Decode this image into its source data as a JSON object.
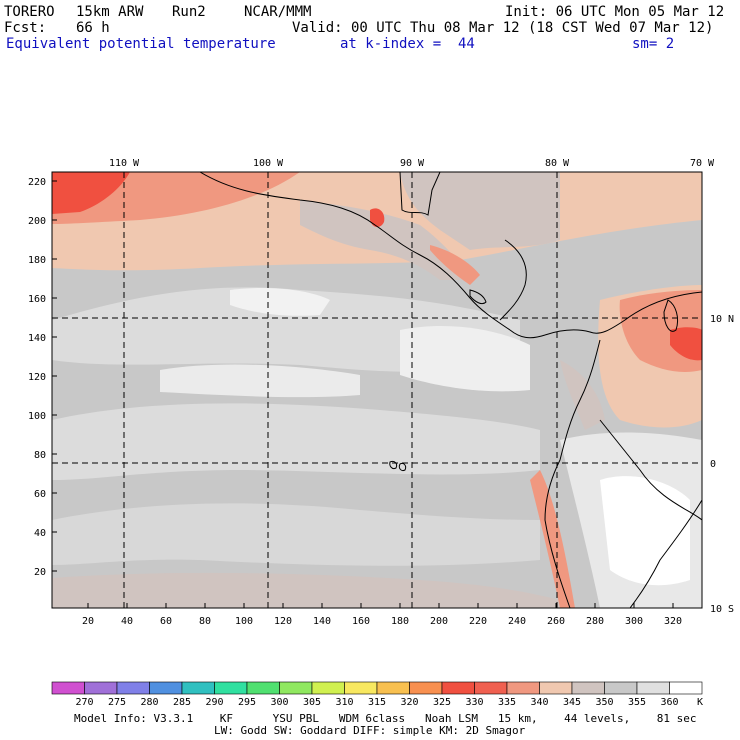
{
  "header": {
    "model": "TORERO",
    "resolution": "15km ARW",
    "run": "Run2",
    "org": "NCAR/MMM",
    "init": "Init: 06 UTC Mon 05 Mar 12",
    "fcst_label": "Fcst:",
    "fcst_value": "66 h",
    "valid": "Valid: 00 UTC Thu 08 Mar 12 (18 CST Wed 07 Mar 12)",
    "field": "Equivalent potential temperature",
    "level": "at k-index =  44",
    "smoothing": "sm= 2"
  },
  "map": {
    "lon_labels": [
      "110 W",
      "100 W",
      "90 W",
      "80 W",
      "70 W"
    ],
    "lat_labels": [
      "10 N",
      "0",
      "10 S"
    ],
    "y_ticks": [
      "20",
      "40",
      "60",
      "80",
      "100",
      "120",
      "140",
      "160",
      "180",
      "200",
      "220"
    ],
    "x_ticks": [
      "20",
      "40",
      "60",
      "80",
      "100",
      "120",
      "140",
      "160",
      "180",
      "200",
      "220",
      "240",
      "260",
      "280",
      "300",
      "320"
    ]
  },
  "colorbar": {
    "labels": [
      "270",
      "275",
      "280",
      "285",
      "290",
      "295",
      "300",
      "305",
      "310",
      "315",
      "320",
      "325",
      "330",
      "335",
      "340",
      "345",
      "350",
      "355",
      "360"
    ],
    "unit": "K",
    "colors": [
      "#d050d0",
      "#a070d8",
      "#8080e8",
      "#5090e0",
      "#30c0c0",
      "#30e0a0",
      "#50e070",
      "#90e860",
      "#d0f050",
      "#f8e860",
      "#f8c050",
      "#f89050",
      "#f05040",
      "#f06050",
      "#f09880",
      "#f0c8b0",
      "#d0c4c0",
      "#c8c8c8",
      "#e0e0e0",
      "#ffffff"
    ]
  },
  "footer": {
    "line1": "Model Info: V3.3.1    KF      YSU PBL   WDM 6class   Noah LSM   15 km,    44 levels,    81 sec",
    "line2": "LW: Godd SW: Goddard DIFF: simple KM: 2D Smagor"
  }
}
